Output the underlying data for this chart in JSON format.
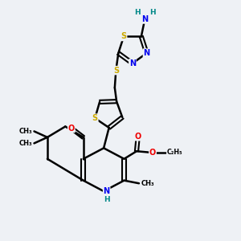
{
  "background_color": "#eef1f5",
  "atom_colors": {
    "C": "#000000",
    "N": "#0000ee",
    "O": "#ee0000",
    "S": "#ccaa00",
    "H": "#008888"
  },
  "bond_color": "#000000",
  "bond_width": 1.8,
  "figsize": [
    3.0,
    3.0
  ],
  "dpi": 100,
  "xlim": [
    0,
    10
  ],
  "ylim": [
    0,
    10
  ]
}
